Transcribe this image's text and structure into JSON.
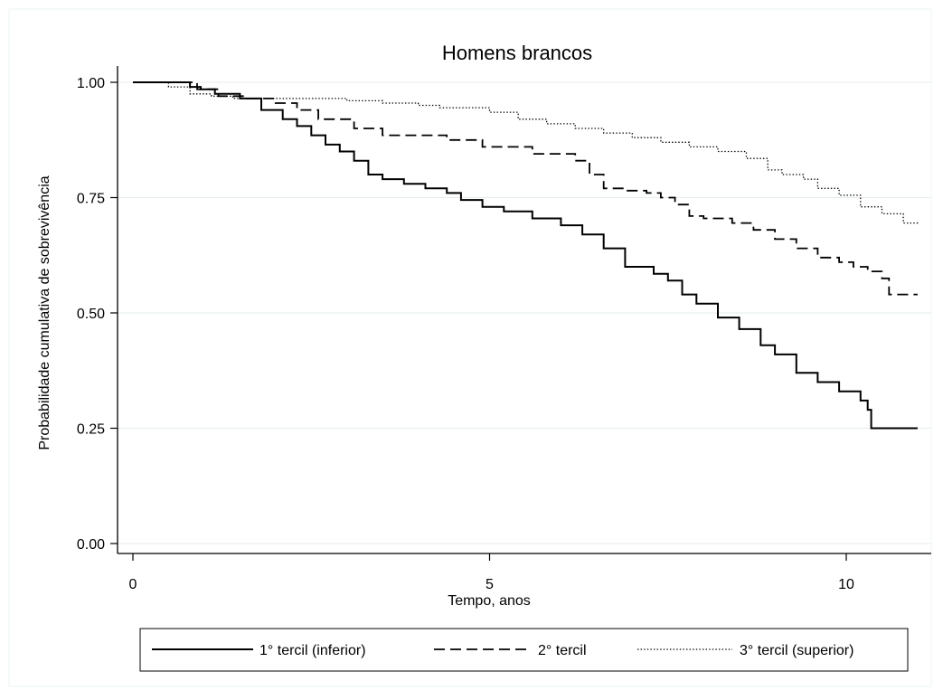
{
  "chart_data": {
    "type": "line",
    "title": "Homens brancos",
    "xlabel": "Tempo, anos",
    "ylabel": "Probabilidade cumulativa de sobrevivência",
    "xlim": [
      0,
      11
    ],
    "ylim": [
      0,
      1
    ],
    "xticks": [
      0,
      5,
      10
    ],
    "xtick_labels": [
      "0",
      "5",
      "10"
    ],
    "yticks": [
      0,
      0.25,
      0.5,
      0.75,
      1
    ],
    "ytick_labels": [
      "0.00",
      "0.25",
      "0.50",
      "0.75",
      "1.00"
    ],
    "grid": "horizontal",
    "legend_position": "bottom",
    "series": [
      {
        "name": "1° tercil (inferior)",
        "color": "#000000",
        "line_style": "solid",
        "x": [
          0,
          0.6,
          0.8,
          0.95,
          1.15,
          1.5,
          1.8,
          2.1,
          2.3,
          2.5,
          2.7,
          2.9,
          3.1,
          3.3,
          3.5,
          3.8,
          4.1,
          4.4,
          4.6,
          4.9,
          5.2,
          5.6,
          6.0,
          6.3,
          6.6,
          6.9,
          7.3,
          7.5,
          7.7,
          7.9,
          8.2,
          8.5,
          8.8,
          9.0,
          9.3,
          9.6,
          9.9,
          10.2,
          10.3,
          10.35,
          11.0
        ],
        "y": [
          1.0,
          1.0,
          0.99,
          0.985,
          0.975,
          0.965,
          0.94,
          0.92,
          0.905,
          0.885,
          0.865,
          0.85,
          0.83,
          0.8,
          0.79,
          0.78,
          0.77,
          0.76,
          0.745,
          0.73,
          0.72,
          0.705,
          0.69,
          0.67,
          0.64,
          0.6,
          0.585,
          0.57,
          0.54,
          0.52,
          0.49,
          0.465,
          0.43,
          0.41,
          0.37,
          0.35,
          0.33,
          0.31,
          0.29,
          0.25,
          0.25
        ]
      },
      {
        "name": "2° tercil",
        "color": "#000000",
        "line_style": "dashed",
        "x": [
          0,
          0.6,
          0.9,
          1.2,
          1.6,
          2.0,
          2.3,
          2.6,
          3.1,
          3.5,
          4.4,
          4.9,
          5.6,
          6.2,
          6.4,
          6.6,
          6.9,
          7.2,
          7.4,
          7.6,
          7.8,
          8.0,
          8.4,
          8.7,
          9.0,
          9.3,
          9.6,
          9.9,
          10.1,
          10.3,
          10.5,
          10.6,
          11.0
        ],
        "y": [
          1.0,
          1.0,
          0.985,
          0.97,
          0.965,
          0.955,
          0.94,
          0.92,
          0.9,
          0.885,
          0.875,
          0.86,
          0.845,
          0.83,
          0.8,
          0.77,
          0.765,
          0.76,
          0.75,
          0.735,
          0.71,
          0.705,
          0.695,
          0.68,
          0.66,
          0.64,
          0.62,
          0.61,
          0.6,
          0.59,
          0.575,
          0.54,
          0.54
        ]
      },
      {
        "name": "3° tercil (superior)",
        "color": "#000000",
        "line_style": "dotted",
        "x": [
          0,
          0.5,
          0.8,
          1.1,
          1.4,
          2.0,
          3.0,
          3.5,
          4.0,
          4.3,
          5.0,
          5.4,
          5.8,
          6.2,
          6.6,
          7.0,
          7.4,
          7.8,
          8.2,
          8.6,
          8.9,
          9.1,
          9.4,
          9.6,
          9.9,
          10.2,
          10.5,
          10.8,
          11.0
        ],
        "y": [
          1.0,
          0.99,
          0.975,
          0.97,
          0.965,
          0.965,
          0.96,
          0.955,
          0.95,
          0.945,
          0.935,
          0.92,
          0.91,
          0.9,
          0.89,
          0.88,
          0.87,
          0.86,
          0.85,
          0.835,
          0.81,
          0.8,
          0.79,
          0.77,
          0.755,
          0.73,
          0.715,
          0.695,
          0.69
        ]
      }
    ]
  }
}
